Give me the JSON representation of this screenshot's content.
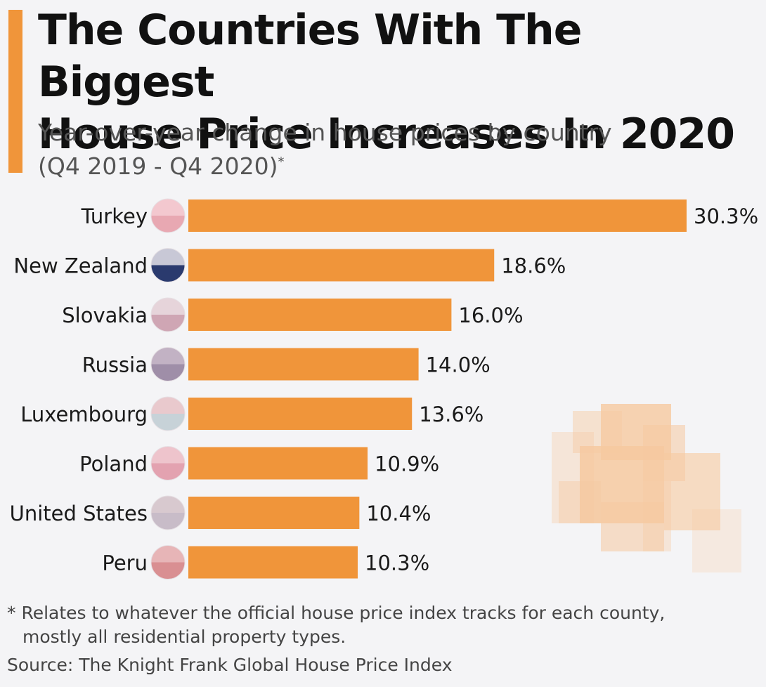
{
  "title_line1": "The Countries With The Biggest",
  "title_line2": "House Price Increases In 2020",
  "subtitle_line1": "Year-over-year change in house prices by country",
  "subtitle_line2": "(Q4 2019 - Q4 2020)",
  "subtitle_mark": "*",
  "footnote_line1": "* Relates to whatever the official house price index tracks for each county,",
  "footnote_line2": "mostly all residential property types.",
  "source": "Source: The Knight Frank Global House Price Index",
  "colors": {
    "bar": "#f0953a",
    "accent": "#f0953a",
    "text": "#1a1a1a"
  },
  "chart_data": {
    "type": "bar",
    "orientation": "horizontal",
    "categories": [
      "Turkey",
      "New Zealand",
      "Slovakia",
      "Russia",
      "Luxembourg",
      "Poland",
      "United States",
      "Peru"
    ],
    "values": [
      30.3,
      18.6,
      16.0,
      14.0,
      13.6,
      10.9,
      10.4,
      10.3
    ],
    "value_labels": [
      "30.3%",
      "18.6%",
      "16.0%",
      "14.0%",
      "13.6%",
      "10.9%",
      "10.4%",
      "10.3%"
    ],
    "flags": [
      "turkey-flag-icon",
      "new-zealand-flag-icon",
      "slovakia-flag-icon",
      "russia-flag-icon",
      "luxembourg-flag-icon",
      "poland-flag-icon",
      "united-states-flag-icon",
      "peru-flag-icon"
    ],
    "flag_colors": [
      [
        "#e8a8b2",
        "#f3c8cf"
      ],
      [
        "#2a3a6e",
        "#c8c8d6"
      ],
      [
        "#cfa6b4",
        "#e6d4da"
      ],
      [
        "#9f8ea8",
        "#c2b2c4"
      ],
      [
        "#c7d2d8",
        "#e9c9cd"
      ],
      [
        "#e3a2b0",
        "#eec4cc"
      ],
      [
        "#c8bcc8",
        "#d8c9cf"
      ],
      [
        "#d98f92",
        "#e7b5b7"
      ]
    ],
    "xlim": [
      0,
      30.3
    ],
    "grid": false,
    "legend": "none"
  }
}
